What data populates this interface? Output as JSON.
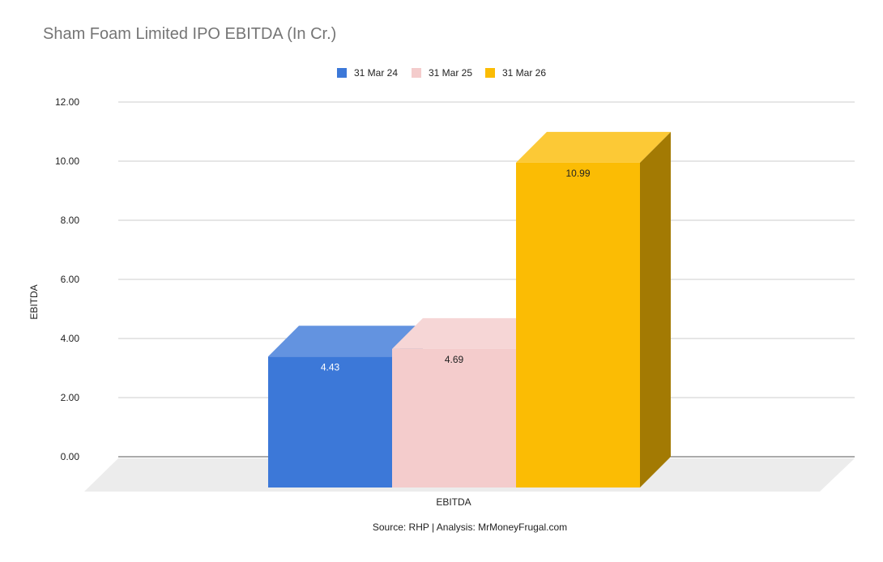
{
  "chart_data": {
    "type": "bar",
    "title": "Sham Foam Limited IPO EBITDA (In Cr.)",
    "xlabel": "EBITDA",
    "ylabel": "EBITDA",
    "categories": [
      "EBITDA"
    ],
    "ylim": [
      0,
      12
    ],
    "yticks": [
      "0.00",
      "2.00",
      "4.00",
      "6.00",
      "8.00",
      "10.00",
      "12.00"
    ],
    "grid": true,
    "legend_position": "top",
    "three_d": true,
    "series": [
      {
        "name": "31 Mar 24",
        "values": [
          4.43
        ],
        "label": "4.43",
        "color": "#3c78d8"
      },
      {
        "name": "31 Mar 25",
        "values": [
          4.69
        ],
        "label": "4.69",
        "color": "#f4cccc"
      },
      {
        "name": "31 Mar 26",
        "values": [
          10.99
        ],
        "label": "10.99",
        "color": "#fbbc04"
      }
    ]
  },
  "footer": {
    "source": "Source: RHP | Analysis: MrMoneyFrugal.com"
  }
}
